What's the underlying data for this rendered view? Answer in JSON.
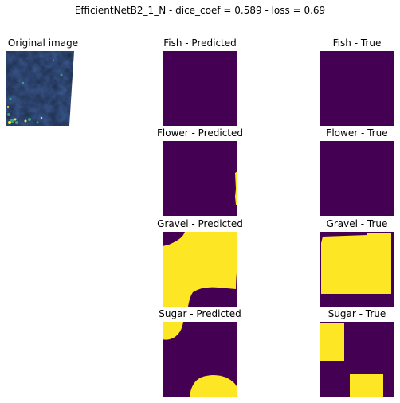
{
  "figure": {
    "suptitle": "EfficientNetB2_1_N - dice_coef = 0.589 - loss = 0.69"
  },
  "panels": {
    "original": {
      "title": "Original image"
    },
    "fish_pred": {
      "title": "Fish - Predicted"
    },
    "fish_true": {
      "title": "Fish - True"
    },
    "flower_pred": {
      "title": "Flower - Predicted"
    },
    "flower_true": {
      "title": "Flower - True"
    },
    "gravel_pred": {
      "title": "Gravel - Predicted"
    },
    "gravel_true": {
      "title": "Gravel - True"
    },
    "sugar_pred": {
      "title": "Sugar - Predicted"
    },
    "sugar_true": {
      "title": "Sugar - True"
    }
  },
  "colors": {
    "mask_background": "#440154",
    "mask_foreground": "#fde725"
  }
}
